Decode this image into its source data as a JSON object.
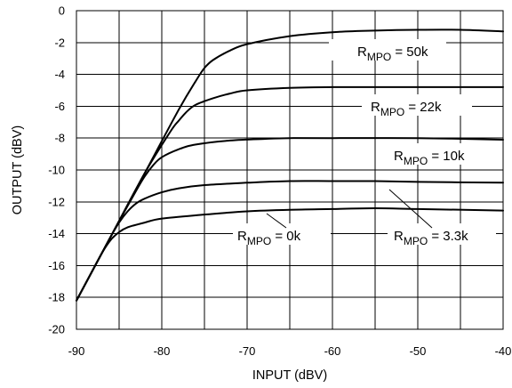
{
  "chart_data": {
    "type": "line",
    "xlabel": "INPUT (dBV)",
    "ylabel": "OUTPUT (dBV)",
    "xlim": [
      -90,
      -40
    ],
    "ylim": [
      -20,
      0
    ],
    "xticks": [
      -90,
      -80,
      -70,
      -60,
      -50,
      -40
    ],
    "yticks": [
      0,
      -2,
      -4,
      -6,
      -8,
      -10,
      -12,
      -14,
      -16,
      -18,
      -20
    ],
    "x_gridlines": [
      -90,
      -85,
      -80,
      -75,
      -70,
      -65,
      -60,
      -55,
      -50,
      -45,
      -40
    ],
    "grid": true,
    "series": [
      {
        "name": "R_MPO = 50k",
        "label": {
          "base": "R",
          "sub": "MPO",
          "rest": " = 50k"
        },
        "points": [
          [
            -90,
            -18.2
          ],
          [
            -86,
            -14.2
          ],
          [
            -82,
            -10.2
          ],
          [
            -78,
            -6.2
          ],
          [
            -76,
            -4.4
          ],
          [
            -75,
            -3.6
          ],
          [
            -74,
            -3.1
          ],
          [
            -72,
            -2.5
          ],
          [
            -70,
            -2.1
          ],
          [
            -65,
            -1.6
          ],
          [
            -60,
            -1.35
          ],
          [
            -55,
            -1.25
          ],
          [
            -50,
            -1.2
          ],
          [
            -45,
            -1.2
          ],
          [
            -40,
            -1.3
          ]
        ]
      },
      {
        "name": "R_MPO = 22k",
        "label": {
          "base": "R",
          "sub": "MPO",
          "rest": " = 22k"
        },
        "points": [
          [
            -90,
            -18.2
          ],
          [
            -86,
            -14.2
          ],
          [
            -82,
            -10.2
          ],
          [
            -79,
            -7.6
          ],
          [
            -78,
            -6.9
          ],
          [
            -77,
            -6.3
          ],
          [
            -76,
            -5.9
          ],
          [
            -74,
            -5.5
          ],
          [
            -72,
            -5.2
          ],
          [
            -70,
            -5.0
          ],
          [
            -65,
            -4.85
          ],
          [
            -60,
            -4.8
          ],
          [
            -50,
            -4.8
          ],
          [
            -40,
            -4.8
          ]
        ]
      },
      {
        "name": "R_MPO = 10k",
        "label": {
          "base": "R",
          "sub": "MPO",
          "rest": " = 10k"
        },
        "points": [
          [
            -90,
            -18.2
          ],
          [
            -86,
            -14.2
          ],
          [
            -83,
            -11.3
          ],
          [
            -82,
            -10.4
          ],
          [
            -81,
            -9.7
          ],
          [
            -80,
            -9.2
          ],
          [
            -78,
            -8.7
          ],
          [
            -76,
            -8.4
          ],
          [
            -72,
            -8.15
          ],
          [
            -68,
            -8.05
          ],
          [
            -65,
            -8.0
          ],
          [
            -60,
            -8.0
          ],
          [
            -50,
            -8.0
          ],
          [
            -40,
            -8.1
          ]
        ]
      },
      {
        "name": "R_MPO = 3.3k",
        "label": {
          "base": "R",
          "sub": "MPO",
          "rest": " = 3.3k"
        },
        "points": [
          [
            -90,
            -18.2
          ],
          [
            -87,
            -15.2
          ],
          [
            -86,
            -14.2
          ],
          [
            -85,
            -13.3
          ],
          [
            -84,
            -12.6
          ],
          [
            -83,
            -12.1
          ],
          [
            -82,
            -11.8
          ],
          [
            -80,
            -11.4
          ],
          [
            -78,
            -11.15
          ],
          [
            -75,
            -10.95
          ],
          [
            -70,
            -10.8
          ],
          [
            -65,
            -10.7
          ],
          [
            -60,
            -10.7
          ],
          [
            -55,
            -10.7
          ],
          [
            -50,
            -10.75
          ],
          [
            -40,
            -10.8
          ]
        ]
      },
      {
        "name": "R_MPO = 0k",
        "label": {
          "base": "R",
          "sub": "MPO",
          "rest": " = 0k"
        },
        "points": [
          [
            -90,
            -18.2
          ],
          [
            -88,
            -16.2
          ],
          [
            -87,
            -15.2
          ],
          [
            -86,
            -14.4
          ],
          [
            -85,
            -13.9
          ],
          [
            -84,
            -13.6
          ],
          [
            -82,
            -13.3
          ],
          [
            -80,
            -13.05
          ],
          [
            -75,
            -12.8
          ],
          [
            -70,
            -12.6
          ],
          [
            -65,
            -12.5
          ],
          [
            -60,
            -12.45
          ],
          [
            -55,
            -12.4
          ],
          [
            -50,
            -12.45
          ],
          [
            -40,
            -12.55
          ]
        ]
      }
    ]
  }
}
